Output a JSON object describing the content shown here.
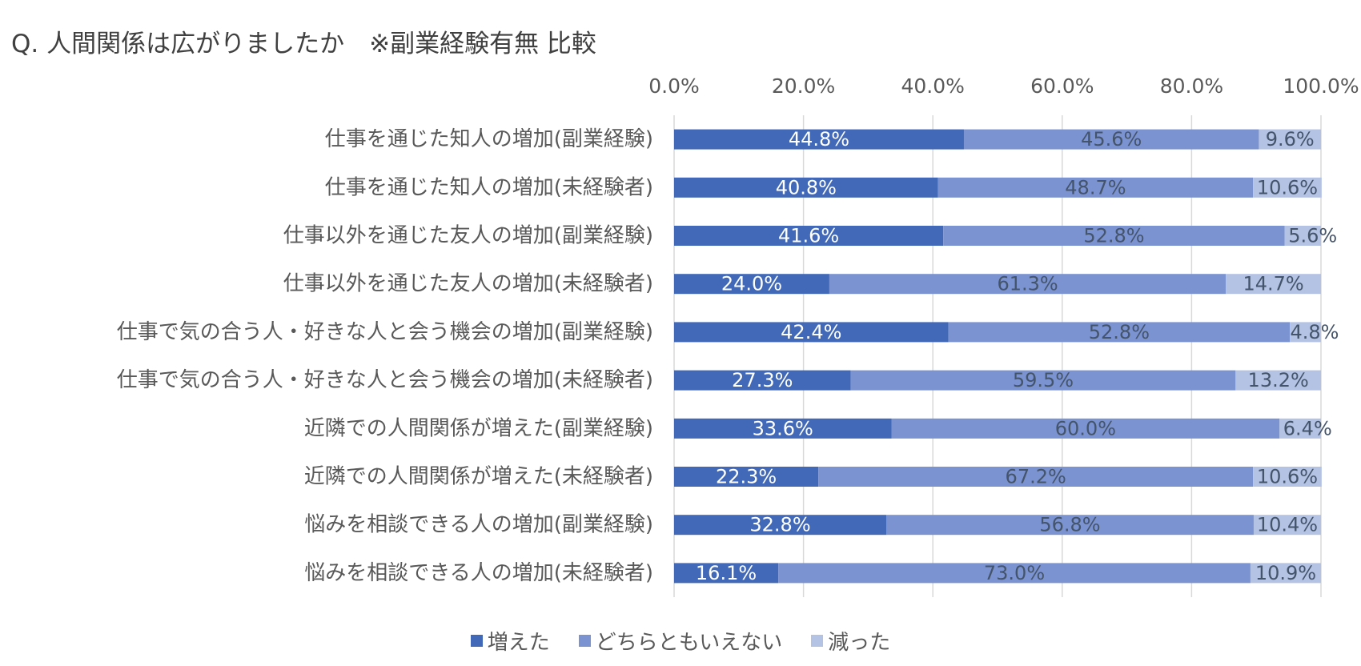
{
  "chart_data": {
    "type": "bar",
    "orientation": "horizontal",
    "stacked": true,
    "title": "Q. 人間関係は広がりましたか　※副業経験有無 比較",
    "xlim": [
      0,
      100
    ],
    "xticks": [
      "0.0%",
      "20.0%",
      "40.0%",
      "60.0%",
      "80.0%",
      "100.0%"
    ],
    "xtick_values": [
      0,
      20,
      40,
      60,
      80,
      100
    ],
    "grid": true,
    "legend_position": "bottom",
    "categories": [
      "仕事を通じた知人の増加(副業経験)",
      "仕事を通じた知人の増加(未経験者)",
      "仕事以外を通じた友人の増加(副業経験)",
      "仕事以外を通じた友人の増加(未経験者)",
      "仕事で気の合う人・好きな人と会う機会の増加(副業経験)",
      "仕事で気の合う人・好きな人と会う機会の増加(未経験者)",
      "近隣での人間関係が増えた(副業経験)",
      "近隣での人間関係が増えた(未経験者)",
      "悩みを相談できる人の増加(副業経験)",
      "悩みを相談できる人の増加(未経験者)"
    ],
    "series": [
      {
        "name": "増えた",
        "color": "#4169b7",
        "label_color": "#ffffff",
        "values": [
          44.8,
          40.8,
          41.6,
          24.0,
          42.4,
          27.3,
          33.6,
          22.3,
          32.8,
          16.1
        ],
        "labels": [
          "44.8%",
          "40.8%",
          "41.6%",
          "24.0%",
          "42.4%",
          "27.3%",
          "33.6%",
          "22.3%",
          "32.8%",
          "16.1%"
        ]
      },
      {
        "name": "どちらともいえない",
        "color": "#7b93d1",
        "label_color": "#44546a",
        "values": [
          45.6,
          48.7,
          52.8,
          61.3,
          52.8,
          59.5,
          60.0,
          67.2,
          56.8,
          73.0
        ],
        "labels": [
          "45.6%",
          "48.7%",
          "52.8%",
          "61.3%",
          "52.8%",
          "59.5%",
          "60.0%",
          "67.2%",
          "56.8%",
          "73.0%"
        ]
      },
      {
        "name": "減った",
        "color": "#b4c2e4",
        "label_color": "#44546a",
        "values": [
          9.6,
          10.6,
          5.6,
          14.7,
          4.8,
          13.2,
          6.4,
          10.6,
          10.4,
          10.9
        ],
        "labels": [
          "9.6%",
          "10.6%",
          "5.6%",
          "14.7%",
          "4.8%",
          "13.2%",
          "6.4%",
          "10.6%",
          "10.4%",
          "10.9%"
        ]
      }
    ]
  },
  "axis_color": "#d9d9d9",
  "text_color": "#595959"
}
